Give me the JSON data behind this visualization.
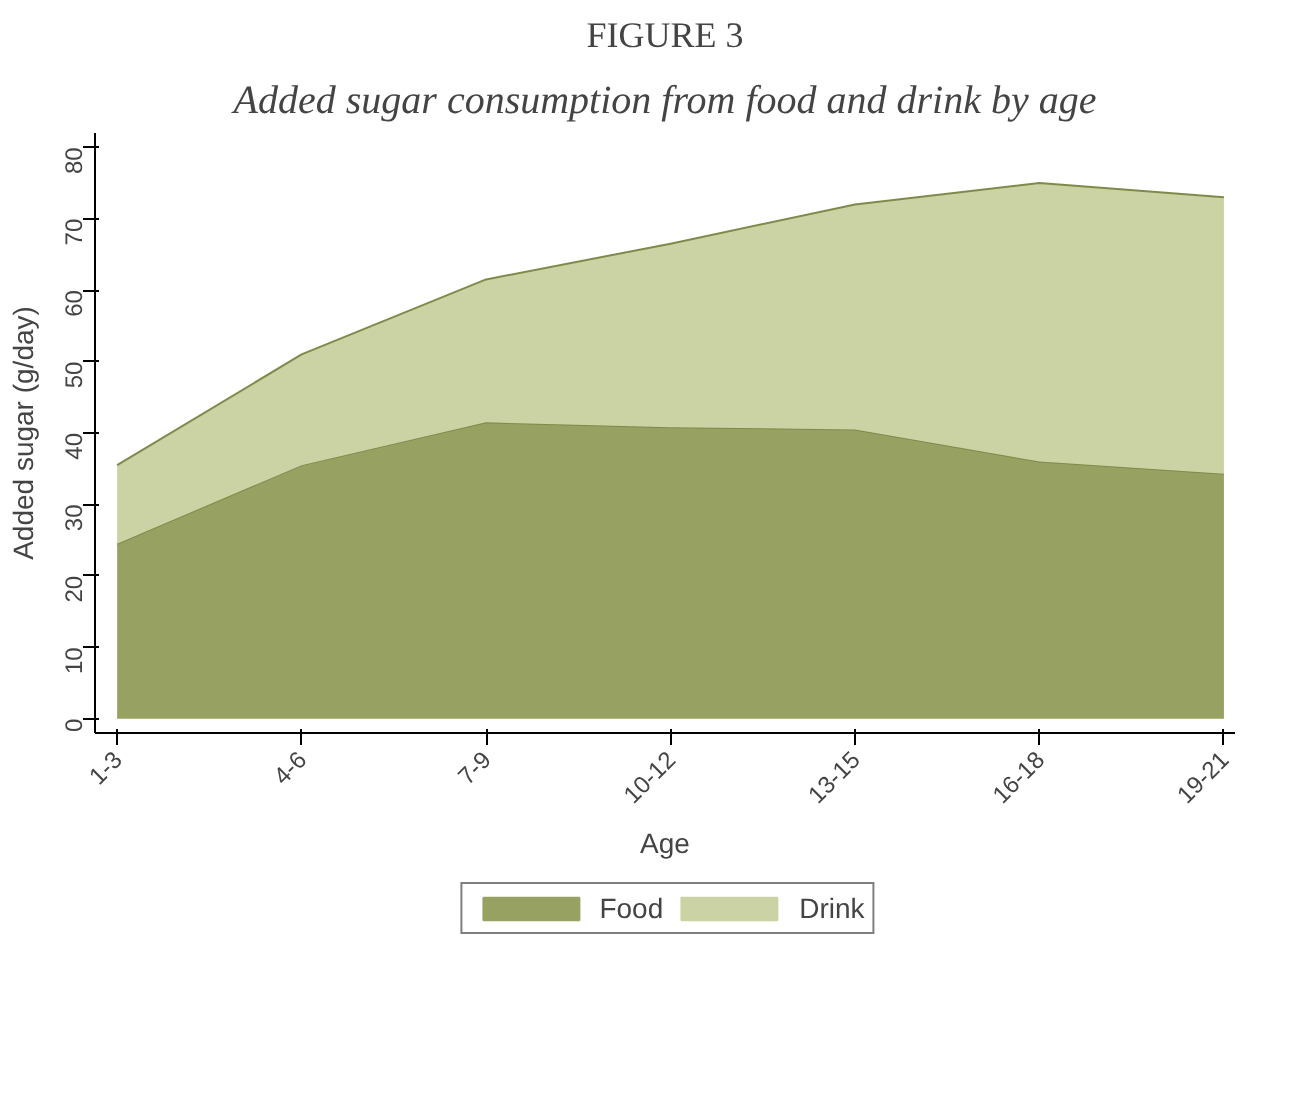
{
  "chart_data": {
    "type": "area",
    "title": "FIGURE 3",
    "subtitle": "Added sugar consumption from food and drink by age",
    "xlabel": "Age",
    "ylabel": "Added sugar (g/day)",
    "categories": [
      "1-3",
      "4-6",
      "7-9",
      "10-12",
      "13-15",
      "16-18",
      "19-21"
    ],
    "stacked": true,
    "series": [
      {
        "name": "Food",
        "color": "#97a262",
        "values": [
          24.5,
          35.5,
          41.5,
          40.8,
          40.5,
          36,
          34.3
        ]
      },
      {
        "name": "Drink",
        "color": "#cbd3a4",
        "values": [
          11,
          15.5,
          20,
          25.7,
          31.5,
          39,
          38.7
        ]
      }
    ],
    "ylim": [
      -2,
      82
    ],
    "yticks": [
      0,
      10,
      20,
      30,
      40,
      50,
      60,
      70,
      80
    ],
    "grid": false,
    "legend": "bottom"
  }
}
